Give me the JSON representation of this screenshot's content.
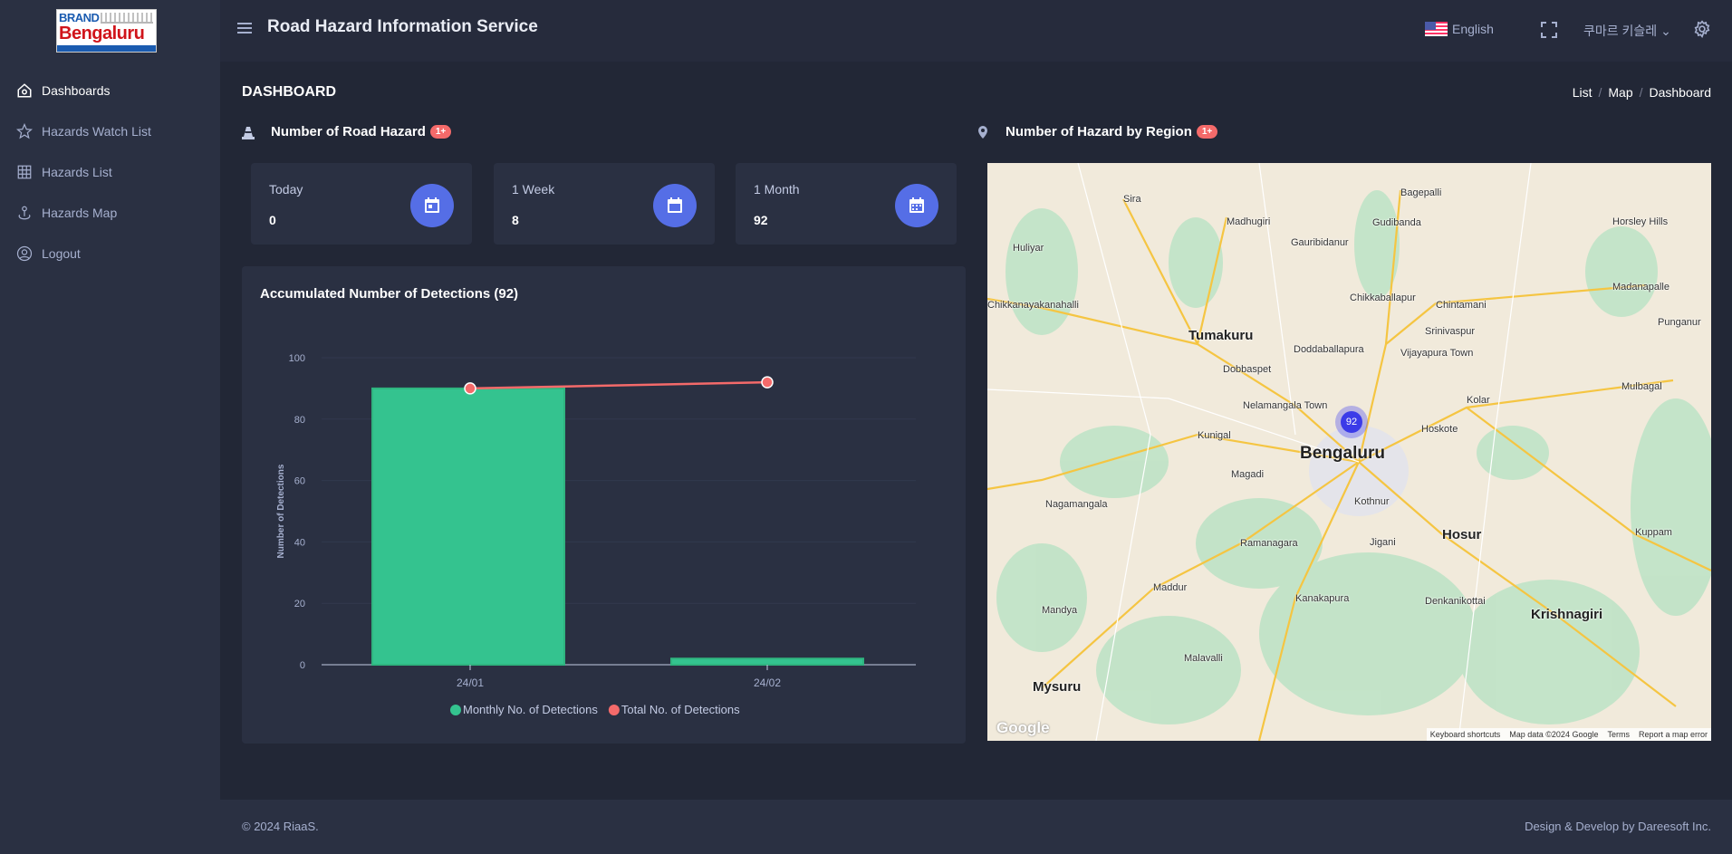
{
  "logo": {
    "text_top": "BRAND",
    "text_main": "Bengaluru",
    "tagline": "Bengaluru Transformation through People Participation"
  },
  "sidebar": {
    "items": [
      {
        "label": "Dashboards",
        "icon": "home-icon"
      },
      {
        "label": "Hazards Watch List",
        "icon": "star-icon"
      },
      {
        "label": "Hazards List",
        "icon": "grid-icon"
      },
      {
        "label": "Hazards Map",
        "icon": "map-pin-icon"
      },
      {
        "label": "Logout",
        "icon": "user-circle-icon"
      }
    ]
  },
  "header": {
    "title": "Road Hazard Information Service",
    "language": "English",
    "user": "쿠마르 키슬레"
  },
  "page": {
    "title": "DASHBOARD",
    "breadcrumb": [
      "List",
      "Map",
      "Dashboard"
    ]
  },
  "road_hazard": {
    "title": "Number of Road Hazard",
    "badge": "1+",
    "stats": [
      {
        "label": "Today",
        "value": "0"
      },
      {
        "label": "1 Week",
        "value": "8"
      },
      {
        "label": "1 Month",
        "value": "92"
      }
    ]
  },
  "region": {
    "title": "Number of Hazard by Region",
    "badge": "1+"
  },
  "colors": {
    "accent": "#556ee6",
    "bar": "#34c38f",
    "line": "#f46a6a",
    "badge": "#f46a6a"
  },
  "chart_data": {
    "type": "bar",
    "title": "Accumulated Number of Detections (92)",
    "xlabel": "",
    "ylabel": "Number of Detections",
    "ylim": [
      0,
      100
    ],
    "yticks": [
      0,
      20,
      40,
      60,
      80,
      100
    ],
    "categories": [
      "24/01",
      "24/02"
    ],
    "grid": true,
    "legend": "bottom",
    "series": [
      {
        "name": "Monthly No. of Detections",
        "type": "bar",
        "values": [
          90,
          2
        ]
      },
      {
        "name": "Total No. of Detections",
        "type": "line",
        "values": [
          90,
          92
        ]
      }
    ]
  },
  "map": {
    "cluster": "92",
    "labels": [
      "Sira",
      "Madhugiri",
      "Gauribidanur",
      "Bagepalli",
      "Gudibanda",
      "Huliyar",
      "Chikkanayakanahalli",
      "Tumakuru",
      "Chikkaballapur",
      "Chintamani",
      "Doddaballapura",
      "Vijayapura Town",
      "Dobbaspet",
      "Nelamangala Town",
      "Kunigal",
      "Magadi",
      "Bengaluru",
      "Hoskote",
      "Kolar",
      "Kothnur",
      "Jigani",
      "Hosur",
      "Ramanagara",
      "Nagamangala",
      "Mandya",
      "Maddur",
      "Kanakapura",
      "Krishnagiri",
      "Mysuru",
      "Malavalli",
      "Srinivaspur",
      "Mulbagal",
      "Kuppam",
      "Denkanikottai",
      "Madanapalle",
      "Punganur",
      "Horsley Hills"
    ],
    "google": "Google",
    "attribution": [
      "Keyboard shortcuts",
      "Map data ©2024 Google",
      "Terms",
      "Report a map error"
    ]
  },
  "footer": {
    "copyright": "© 2024 RiaaS.",
    "credit": "Design & Develop by Dareesoft Inc."
  }
}
